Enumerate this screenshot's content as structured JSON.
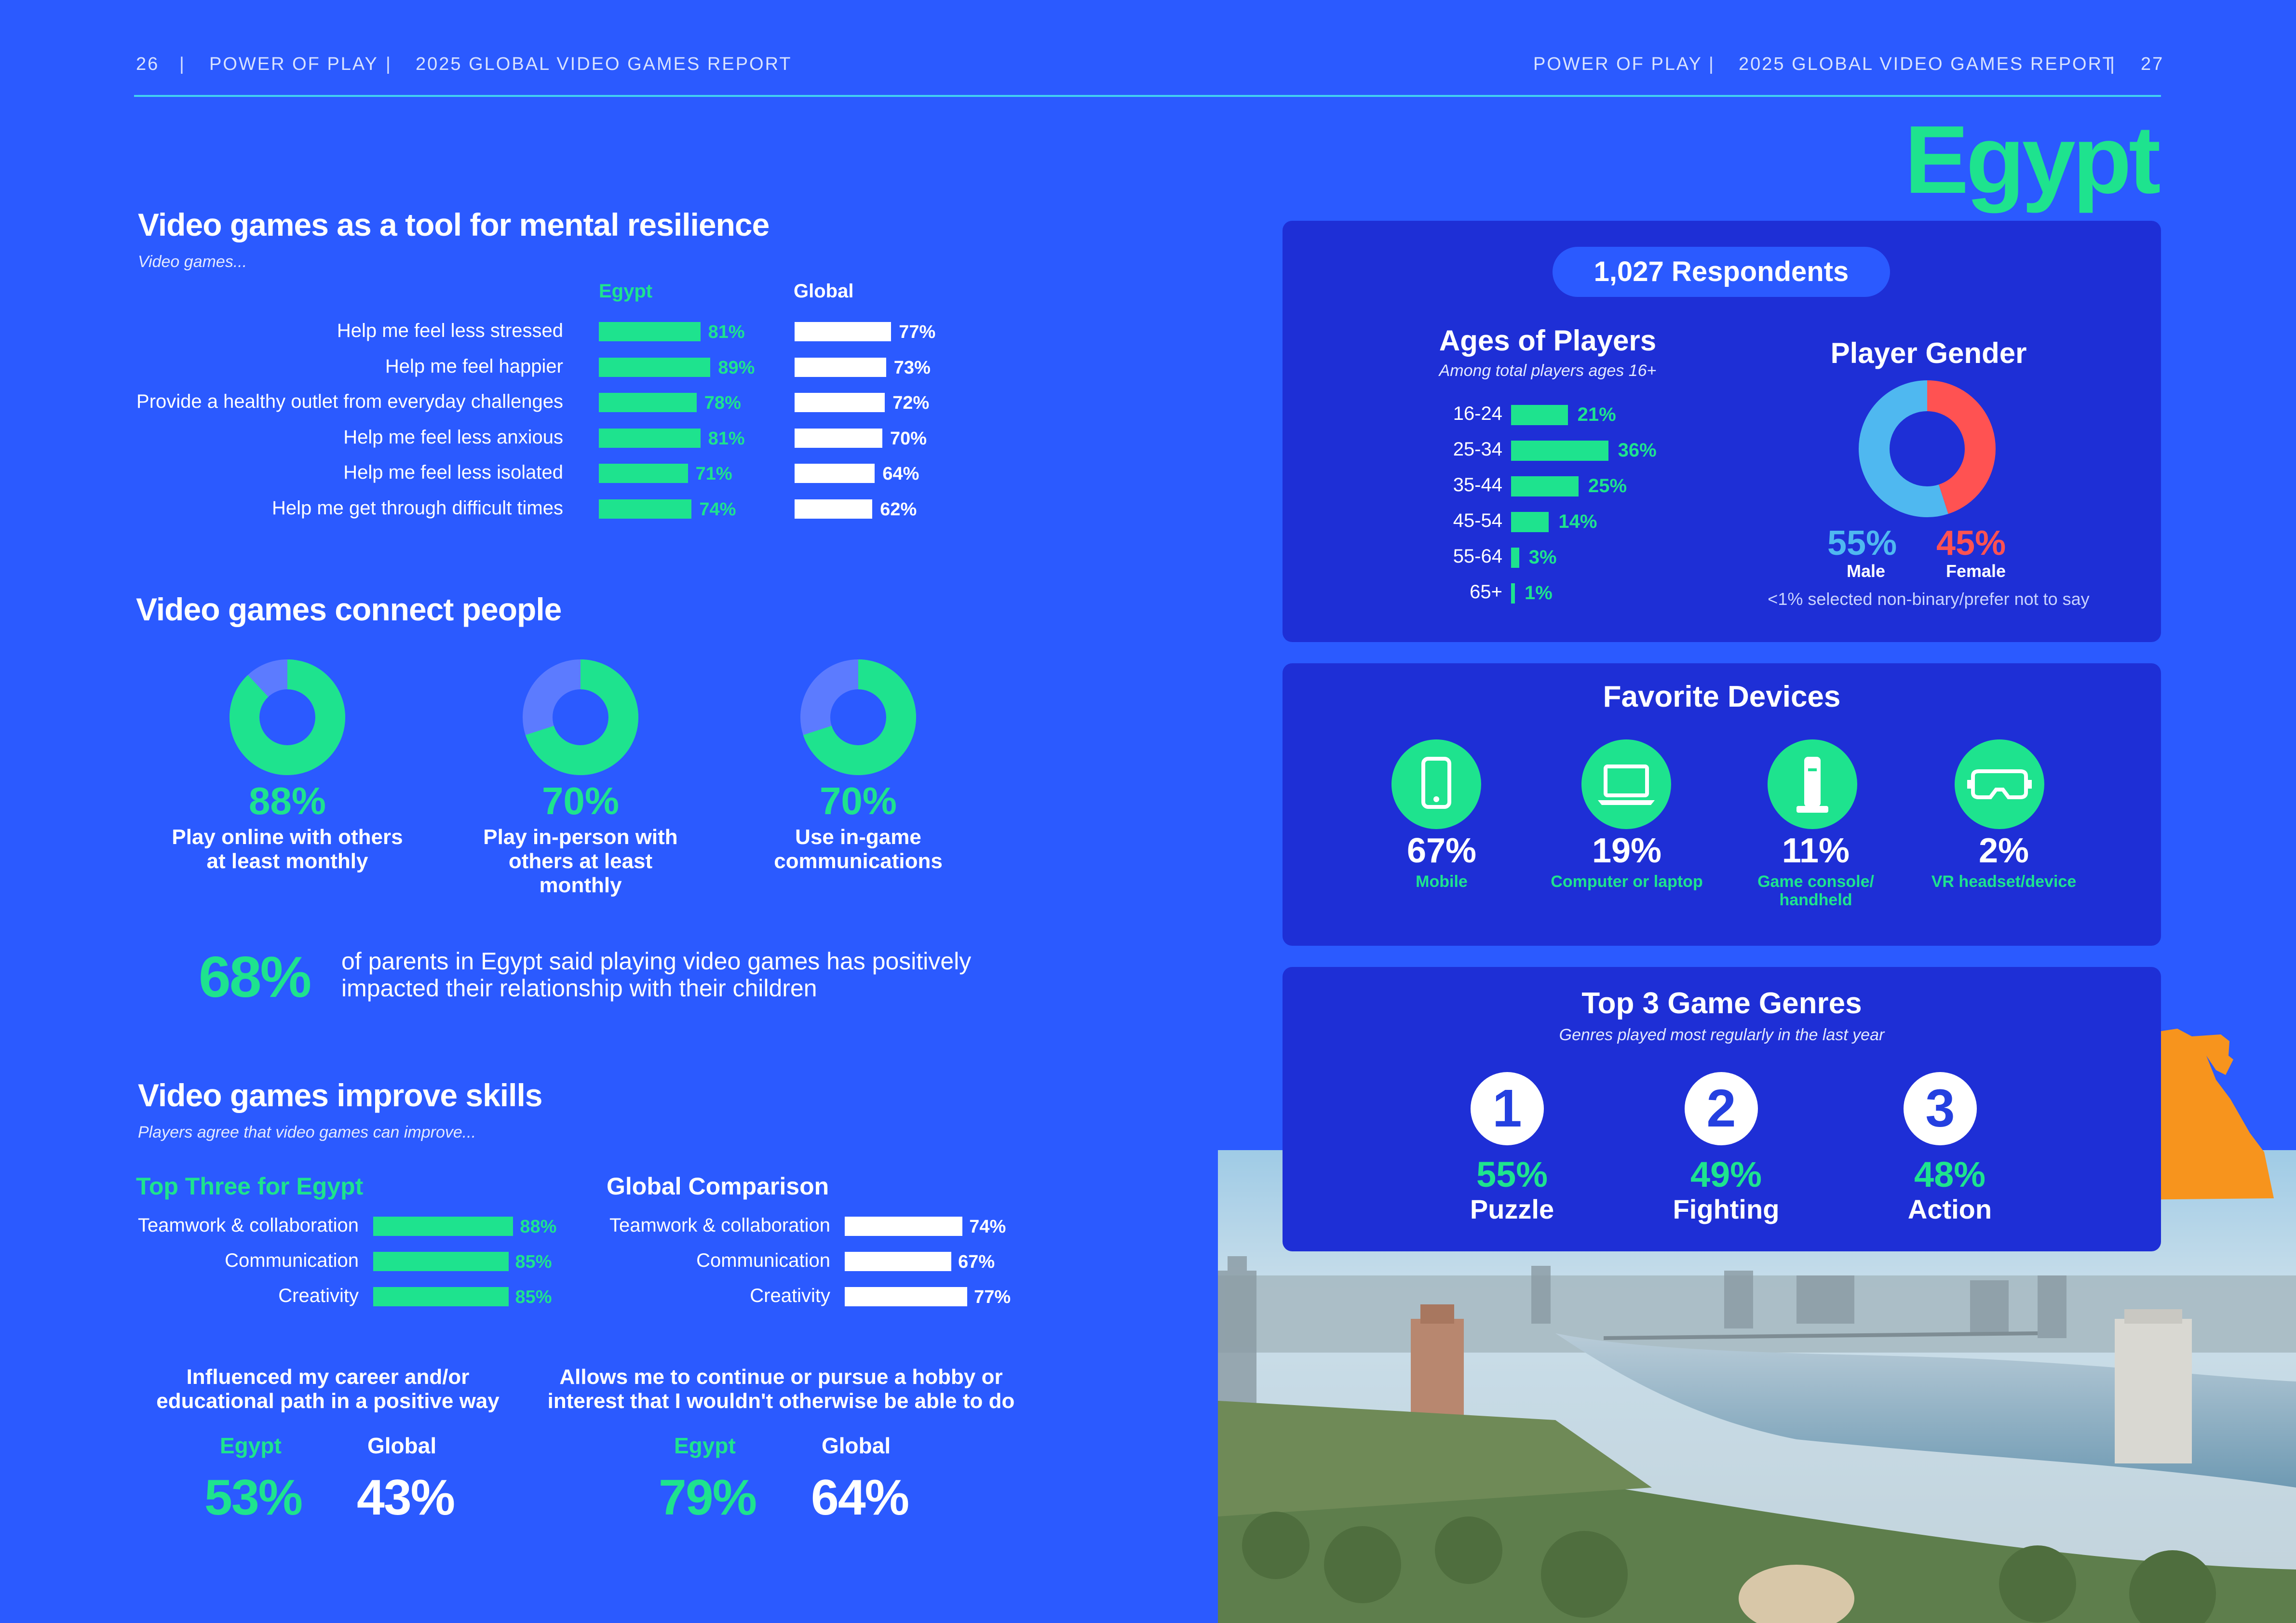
{
  "header": {
    "left_page": "26",
    "left_sep1": "|",
    "left_title": "POWER OF PLAY",
    "left_sep2": "|",
    "left_report": "2025 GLOBAL VIDEO GAMES REPORT",
    "right_title": "POWER OF PLAY",
    "right_sep1": "|",
    "right_report": "2025 GLOBAL VIDEO GAMES REPORT",
    "right_sep2": "|",
    "right_page": "27"
  },
  "country": "Egypt",
  "colors": {
    "background": "#2B5AFF",
    "card": "#1E2FD6",
    "accent": "#1EE38E",
    "male": "#4FB8F0",
    "female": "#FF5252",
    "map": "#F7941D"
  },
  "resilience": {
    "title": "Video games as a tool for mental resilience",
    "subtitle": "Video games...",
    "col_egypt": "Egypt",
    "col_global": "Global",
    "chart_data": {
      "type": "bar",
      "categories": [
        "Help me feel less stressed",
        "Help me feel happier",
        "Provide a healthy outlet from everyday challenges",
        "Help me feel less anxious",
        "Help me feel less isolated",
        "Help me get through difficult times"
      ],
      "series": [
        {
          "name": "Egypt",
          "values": [
            81,
            89,
            78,
            81,
            71,
            74
          ]
        },
        {
          "name": "Global",
          "values": [
            77,
            73,
            72,
            70,
            64,
            62
          ]
        }
      ],
      "labels_egypt": [
        "81%",
        "89%",
        "78%",
        "81%",
        "71%",
        "74%"
      ],
      "labels_global": [
        "77%",
        "73%",
        "72%",
        "70%",
        "64%",
        "62%"
      ]
    }
  },
  "connect": {
    "title": "Video games connect people",
    "chart_data": [
      {
        "type": "pie",
        "values": [
          88,
          12
        ],
        "label": "88%",
        "caption": [
          "Play online with others",
          "at least monthly"
        ]
      },
      {
        "type": "pie",
        "values": [
          70,
          30
        ],
        "label": "70%",
        "caption": [
          "Play in-person with",
          "others at least",
          "monthly"
        ]
      },
      {
        "type": "pie",
        "values": [
          70,
          30
        ],
        "label": "70%",
        "caption": [
          "Use in-game",
          "communications"
        ]
      }
    ],
    "parents_pct": "68%",
    "parents_text_1": "of parents in Egypt said playing video games has positively",
    "parents_text_2": "impacted their relationship with their children"
  },
  "skills": {
    "title": "Video games improve skills",
    "subtitle": "Players agree that video games can improve...",
    "egypt_head": "Top Three for Egypt",
    "global_head": "Global Comparison",
    "chart_data": {
      "type": "bar",
      "categories": [
        "Teamwork & collaboration",
        "Communication",
        "Creativity"
      ],
      "series": [
        {
          "name": "Egypt",
          "values": [
            88,
            85,
            85
          ]
        },
        {
          "name": "Global",
          "values": [
            74,
            67,
            77
          ]
        }
      ],
      "labels_egypt": [
        "88%",
        "85%",
        "85%"
      ],
      "labels_global": [
        "74%",
        "67%",
        "77%"
      ]
    },
    "career_text_1": "Influenced my career and/or",
    "career_text_2": "educational path in a positive way",
    "hobby_text_1": "Allows me to continue or pursue a hobby or",
    "hobby_text_2": "interest that I wouldn't otherwise be able to do",
    "egypt_lbl": "Egypt",
    "global_lbl": "Global",
    "career_egypt": "53%",
    "career_global": "43%",
    "hobby_egypt": "79%",
    "hobby_global": "64%"
  },
  "respondents": "1,027 Respondents",
  "ages": {
    "title": "Ages of Players",
    "subtitle": "Among total players ages 16+",
    "chart_data": {
      "type": "bar",
      "categories": [
        "16-24",
        "25-34",
        "35-44",
        "45-54",
        "55-64",
        "65+"
      ],
      "values": [
        21,
        36,
        25,
        14,
        3,
        1
      ],
      "labels": [
        "21%",
        "36%",
        "25%",
        "14%",
        "3%",
        "1%"
      ]
    }
  },
  "gender": {
    "title": "Player Gender",
    "chart_data": {
      "type": "pie",
      "categories": [
        "Male",
        "Female"
      ],
      "values": [
        55,
        45
      ]
    },
    "male_pct": "55%",
    "male_lbl": "Male",
    "female_pct": "45%",
    "female_lbl": "Female",
    "note": "<1% selected non-binary/prefer not to say"
  },
  "devices": {
    "title": "Favorite Devices",
    "items": [
      {
        "pct": "67%",
        "label": "Mobile",
        "icon": "mobile-phone-icon"
      },
      {
        "pct": "19%",
        "label": "Computer or laptop",
        "icon": "laptop-icon"
      },
      {
        "pct": "11%",
        "label_1": "Game console/",
        "label_2": "handheld",
        "icon": "game-console-icon"
      },
      {
        "pct": "2%",
        "label": "VR headset/device",
        "icon": "vr-headset-icon"
      }
    ]
  },
  "genres": {
    "title": "Top 3 Game Genres",
    "subtitle": "Genres played most regularly in the last year",
    "items": [
      {
        "rank": "1",
        "pct": "55%",
        "label": "Puzzle"
      },
      {
        "rank": "2",
        "pct": "49%",
        "label": "Fighting"
      },
      {
        "rank": "3",
        "pct": "48%",
        "label": "Action"
      }
    ]
  }
}
